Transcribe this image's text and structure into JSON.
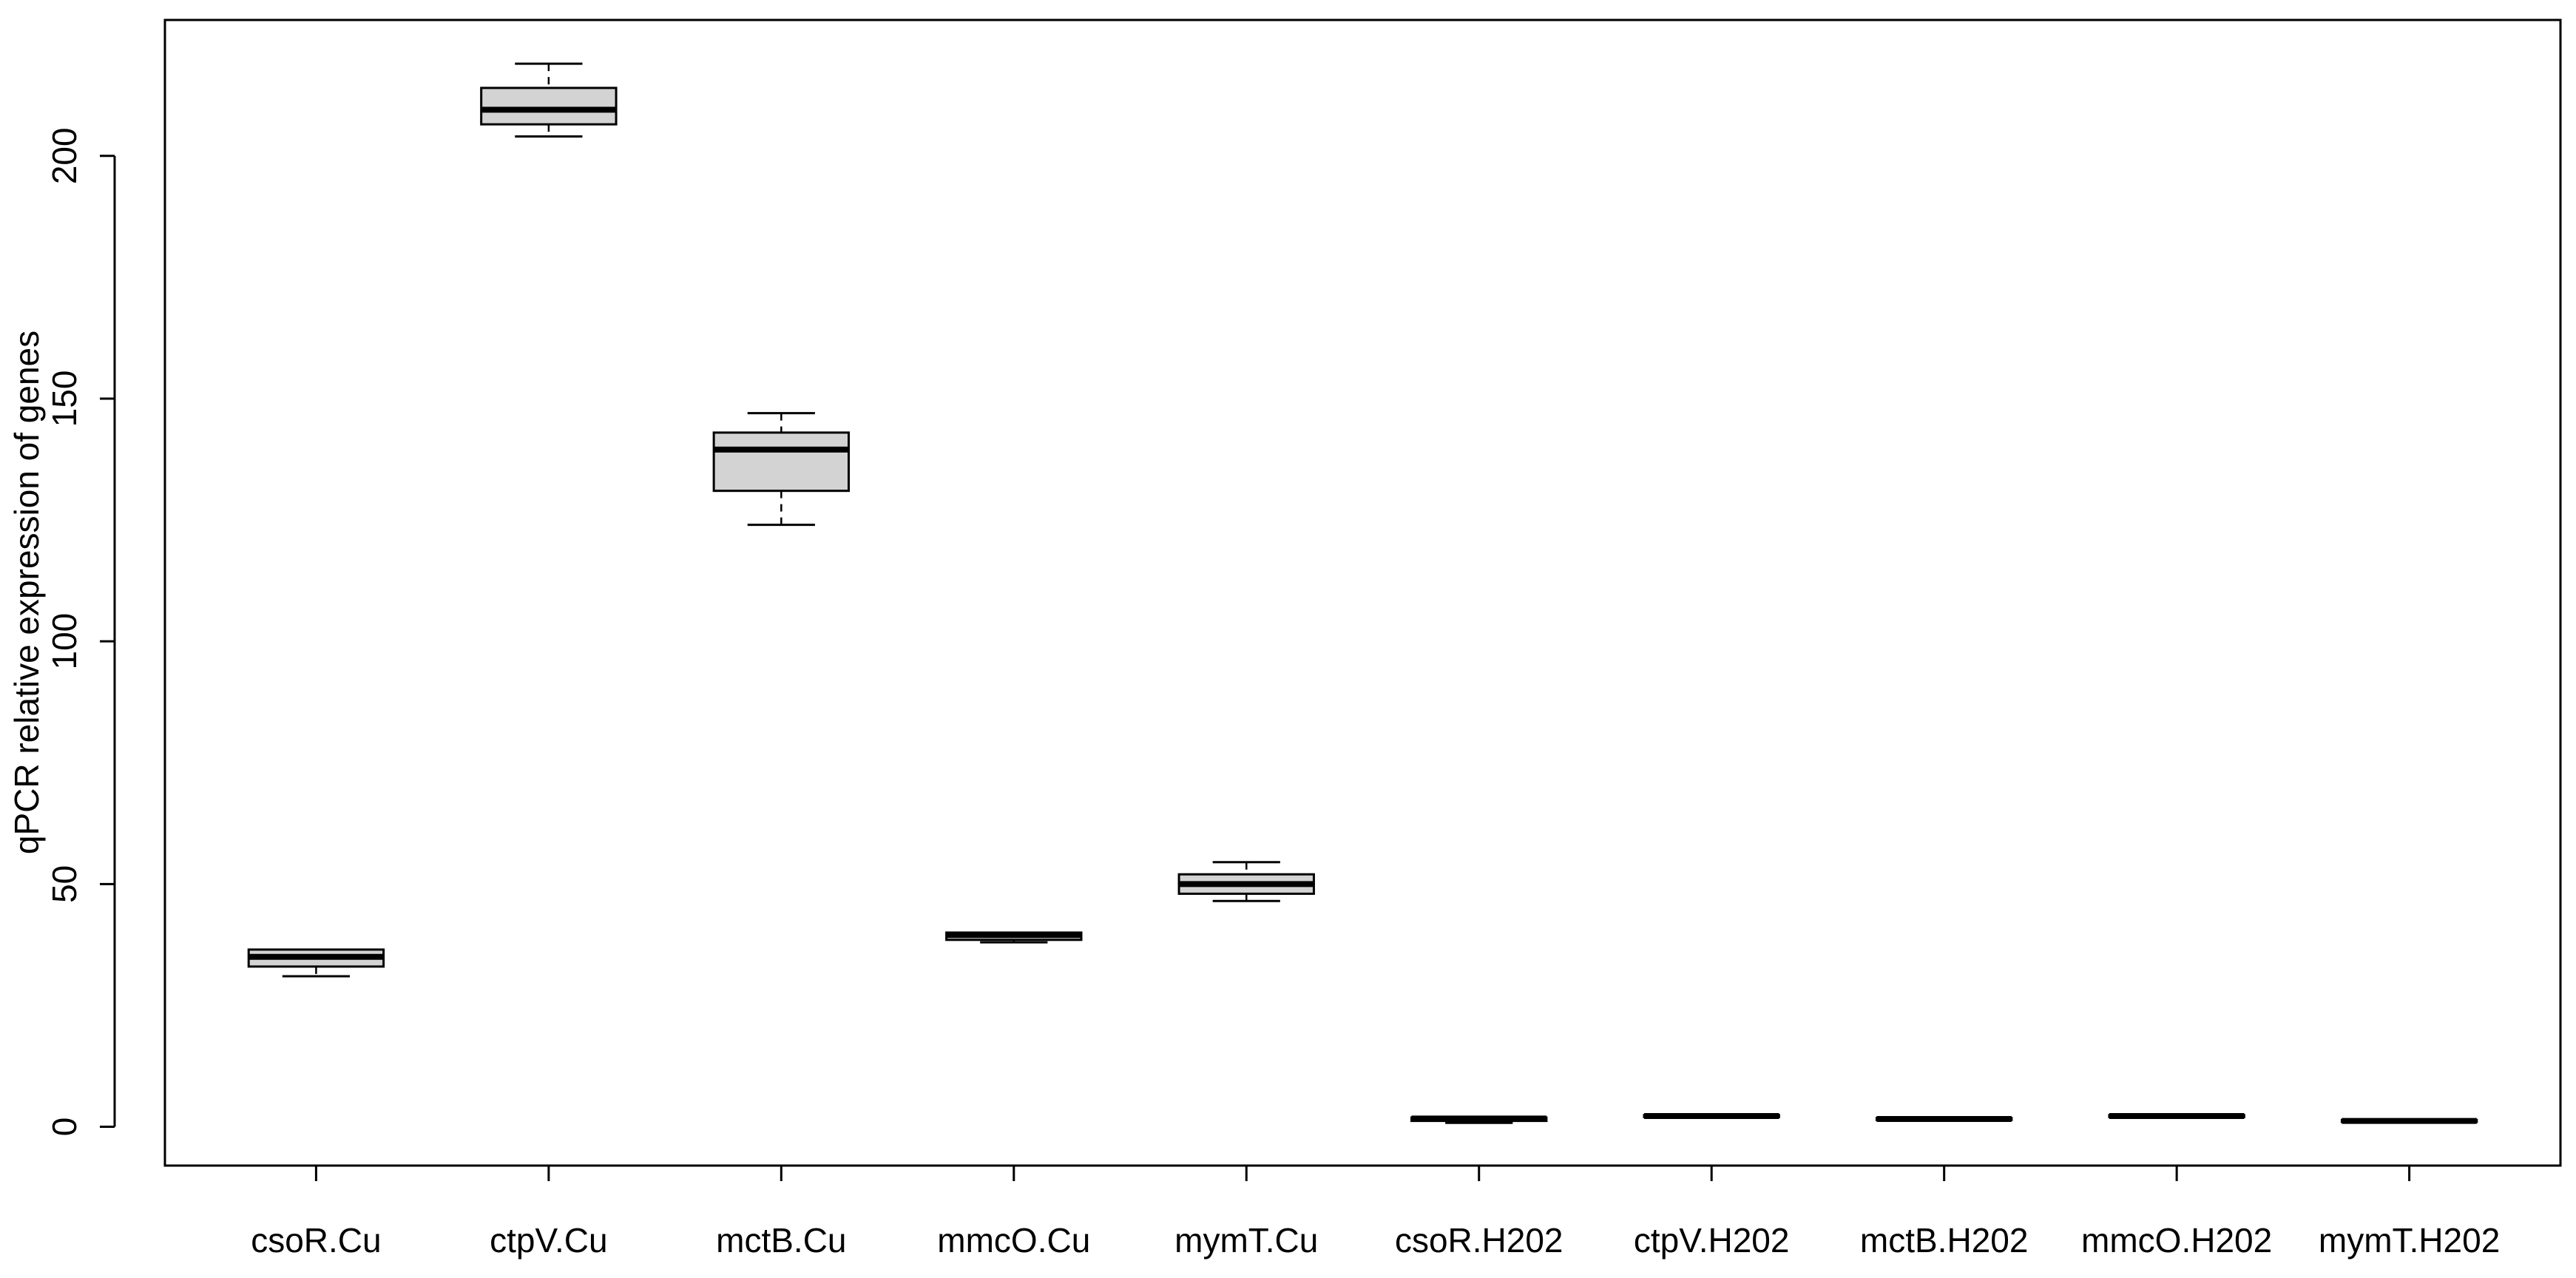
{
  "chart_data": {
    "type": "box",
    "ylabel": "qPCR relative expression of genes",
    "xlabel": "",
    "ylim": [
      -8,
      228
    ],
    "yticks": [
      0,
      50,
      100,
      150,
      200
    ],
    "grid": false,
    "colors": {
      "box_fill": "#d3d3d3",
      "stroke": "#000000"
    },
    "categories": [
      "csoR.Cu",
      "ctpV.Cu",
      "mctB.Cu",
      "mmcO.Cu",
      "mymT.Cu",
      "csoR.H202",
      "ctpV.H202",
      "mctB.H202",
      "mmcO.H202",
      "mymT.H202"
    ],
    "boxes": [
      {
        "label": "csoR.Cu",
        "min": 31,
        "q1": 33,
        "median": 35,
        "q3": 36.5,
        "max": 36.5
      },
      {
        "label": "ctpV.Cu",
        "min": 204,
        "q1": 206.5,
        "median": 209.5,
        "q3": 214,
        "max": 219
      },
      {
        "label": "mctB.Cu",
        "min": 124,
        "q1": 131,
        "median": 139.5,
        "q3": 143,
        "max": 147
      },
      {
        "label": "mmcO.Cu",
        "min": 38,
        "q1": 38.5,
        "median": 39.5,
        "q3": 40,
        "max": 40
      },
      {
        "label": "mymT.Cu",
        "min": 46.5,
        "q1": 48,
        "median": 50,
        "q3": 52,
        "max": 54.5
      },
      {
        "label": "csoR.H202",
        "min": 0.8,
        "q1": 1.2,
        "median": 1.7,
        "q3": 1.9,
        "max": 1.9
      },
      {
        "label": "ctpV.H202",
        "min": 2,
        "q1": 2,
        "median": 2.2,
        "q3": 2.4,
        "max": 2.4
      },
      {
        "label": "mctB.H202",
        "min": 1.4,
        "q1": 1.4,
        "median": 1.6,
        "q3": 1.8,
        "max": 1.8
      },
      {
        "label": "mmcO.H202",
        "min": 2,
        "q1": 2,
        "median": 2.2,
        "q3": 2.4,
        "max": 2.4
      },
      {
        "label": "mymT.H202",
        "min": 1,
        "q1": 1,
        "median": 1.2,
        "q3": 1.4,
        "max": 1.4
      }
    ]
  }
}
